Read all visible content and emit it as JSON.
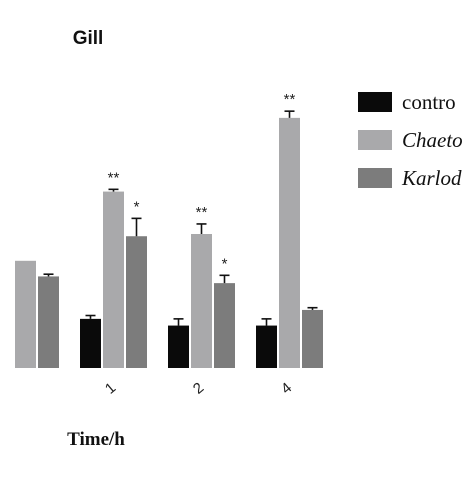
{
  "chart_data": {
    "type": "bar",
    "title": "Gill",
    "xlabel": "Time/h",
    "ylabel": "",
    "categories": [
      "0",
      "1",
      "2",
      "4"
    ],
    "category_labels_visible": [
      "",
      "1",
      "2",
      "4"
    ],
    "ylim": [
      0,
      12
    ],
    "series": [
      {
        "name": "contro",
        "color": "#0a0a0a",
        "values": [
          null,
          2.2,
          1.9,
          1.9
        ],
        "errors": [
          null,
          0.15,
          0.3,
          0.3
        ]
      },
      {
        "name": "Chaeto",
        "color": "#a9a9ab",
        "values": [
          4.8,
          7.9,
          6.0,
          11.2
        ],
        "errors": [
          0,
          0.1,
          0.45,
          0.3
        ]
      },
      {
        "name": "Karlod",
        "color": "#7c7c7c",
        "values": [
          4.1,
          5.9,
          3.8,
          2.6
        ],
        "errors": [
          0.1,
          0.8,
          0.35,
          0.1
        ]
      }
    ],
    "significance": [
      [
        "",
        "",
        ""
      ],
      [
        "",
        "**",
        "*"
      ],
      [
        "",
        "**",
        "*"
      ],
      [
        "",
        "**",
        ""
      ]
    ],
    "legend": {
      "position": "right",
      "entries": [
        "contro",
        "Chaeto",
        "Karlod"
      ],
      "italic": [
        false,
        true,
        true
      ]
    },
    "grid": false
  }
}
